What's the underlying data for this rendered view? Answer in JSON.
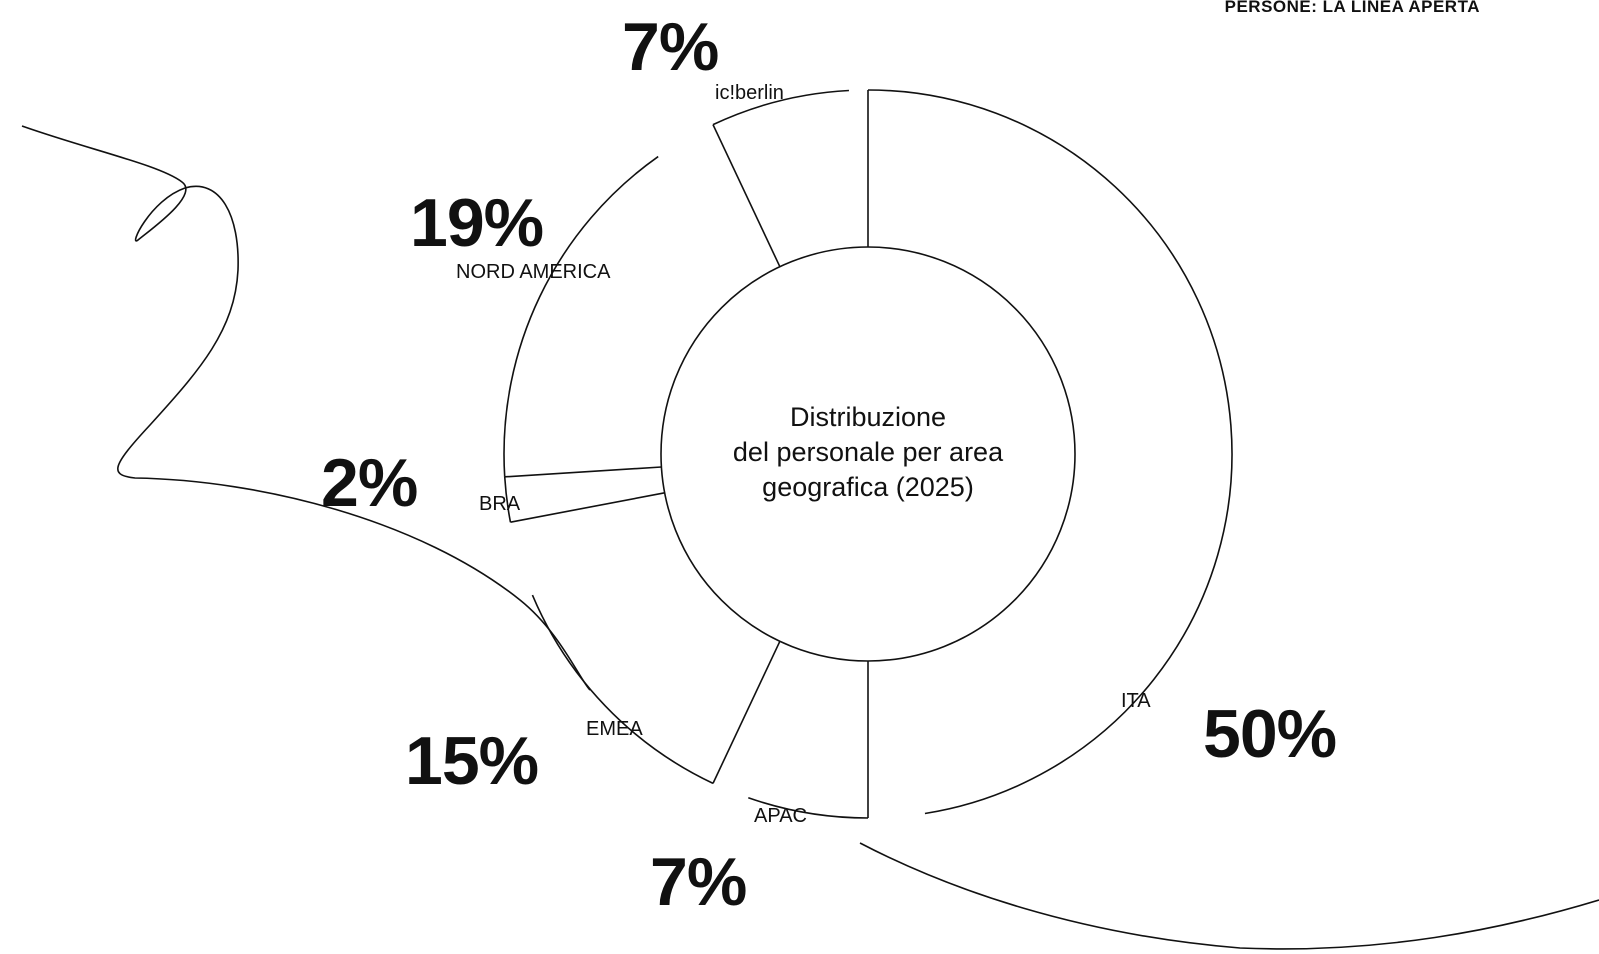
{
  "header": {
    "section_label": "PERSONE: LA LINEA APERTA"
  },
  "chart_data": {
    "type": "pie",
    "title": "Distribuzione del personale per area geografica (2025)",
    "title_lines": [
      "Distribuzione",
      "del personale per area",
      "geografica (2025)"
    ],
    "slices": [
      {
        "label": "ITA",
        "value": 50,
        "value_label": "50%"
      },
      {
        "label": "APAC",
        "value": 7,
        "value_label": "7%"
      },
      {
        "label": "EMEA",
        "value": 15,
        "value_label": "15%"
      },
      {
        "label": "BRA",
        "value": 2,
        "value_label": "2%"
      },
      {
        "label": "NORD AMERICA",
        "value": 19,
        "value_label": "19%"
      },
      {
        "label": "ic!berlin",
        "value": 7,
        "value_label": "7%"
      }
    ],
    "colors": {
      "stroke": "#111111",
      "background": "#ffffff"
    }
  }
}
